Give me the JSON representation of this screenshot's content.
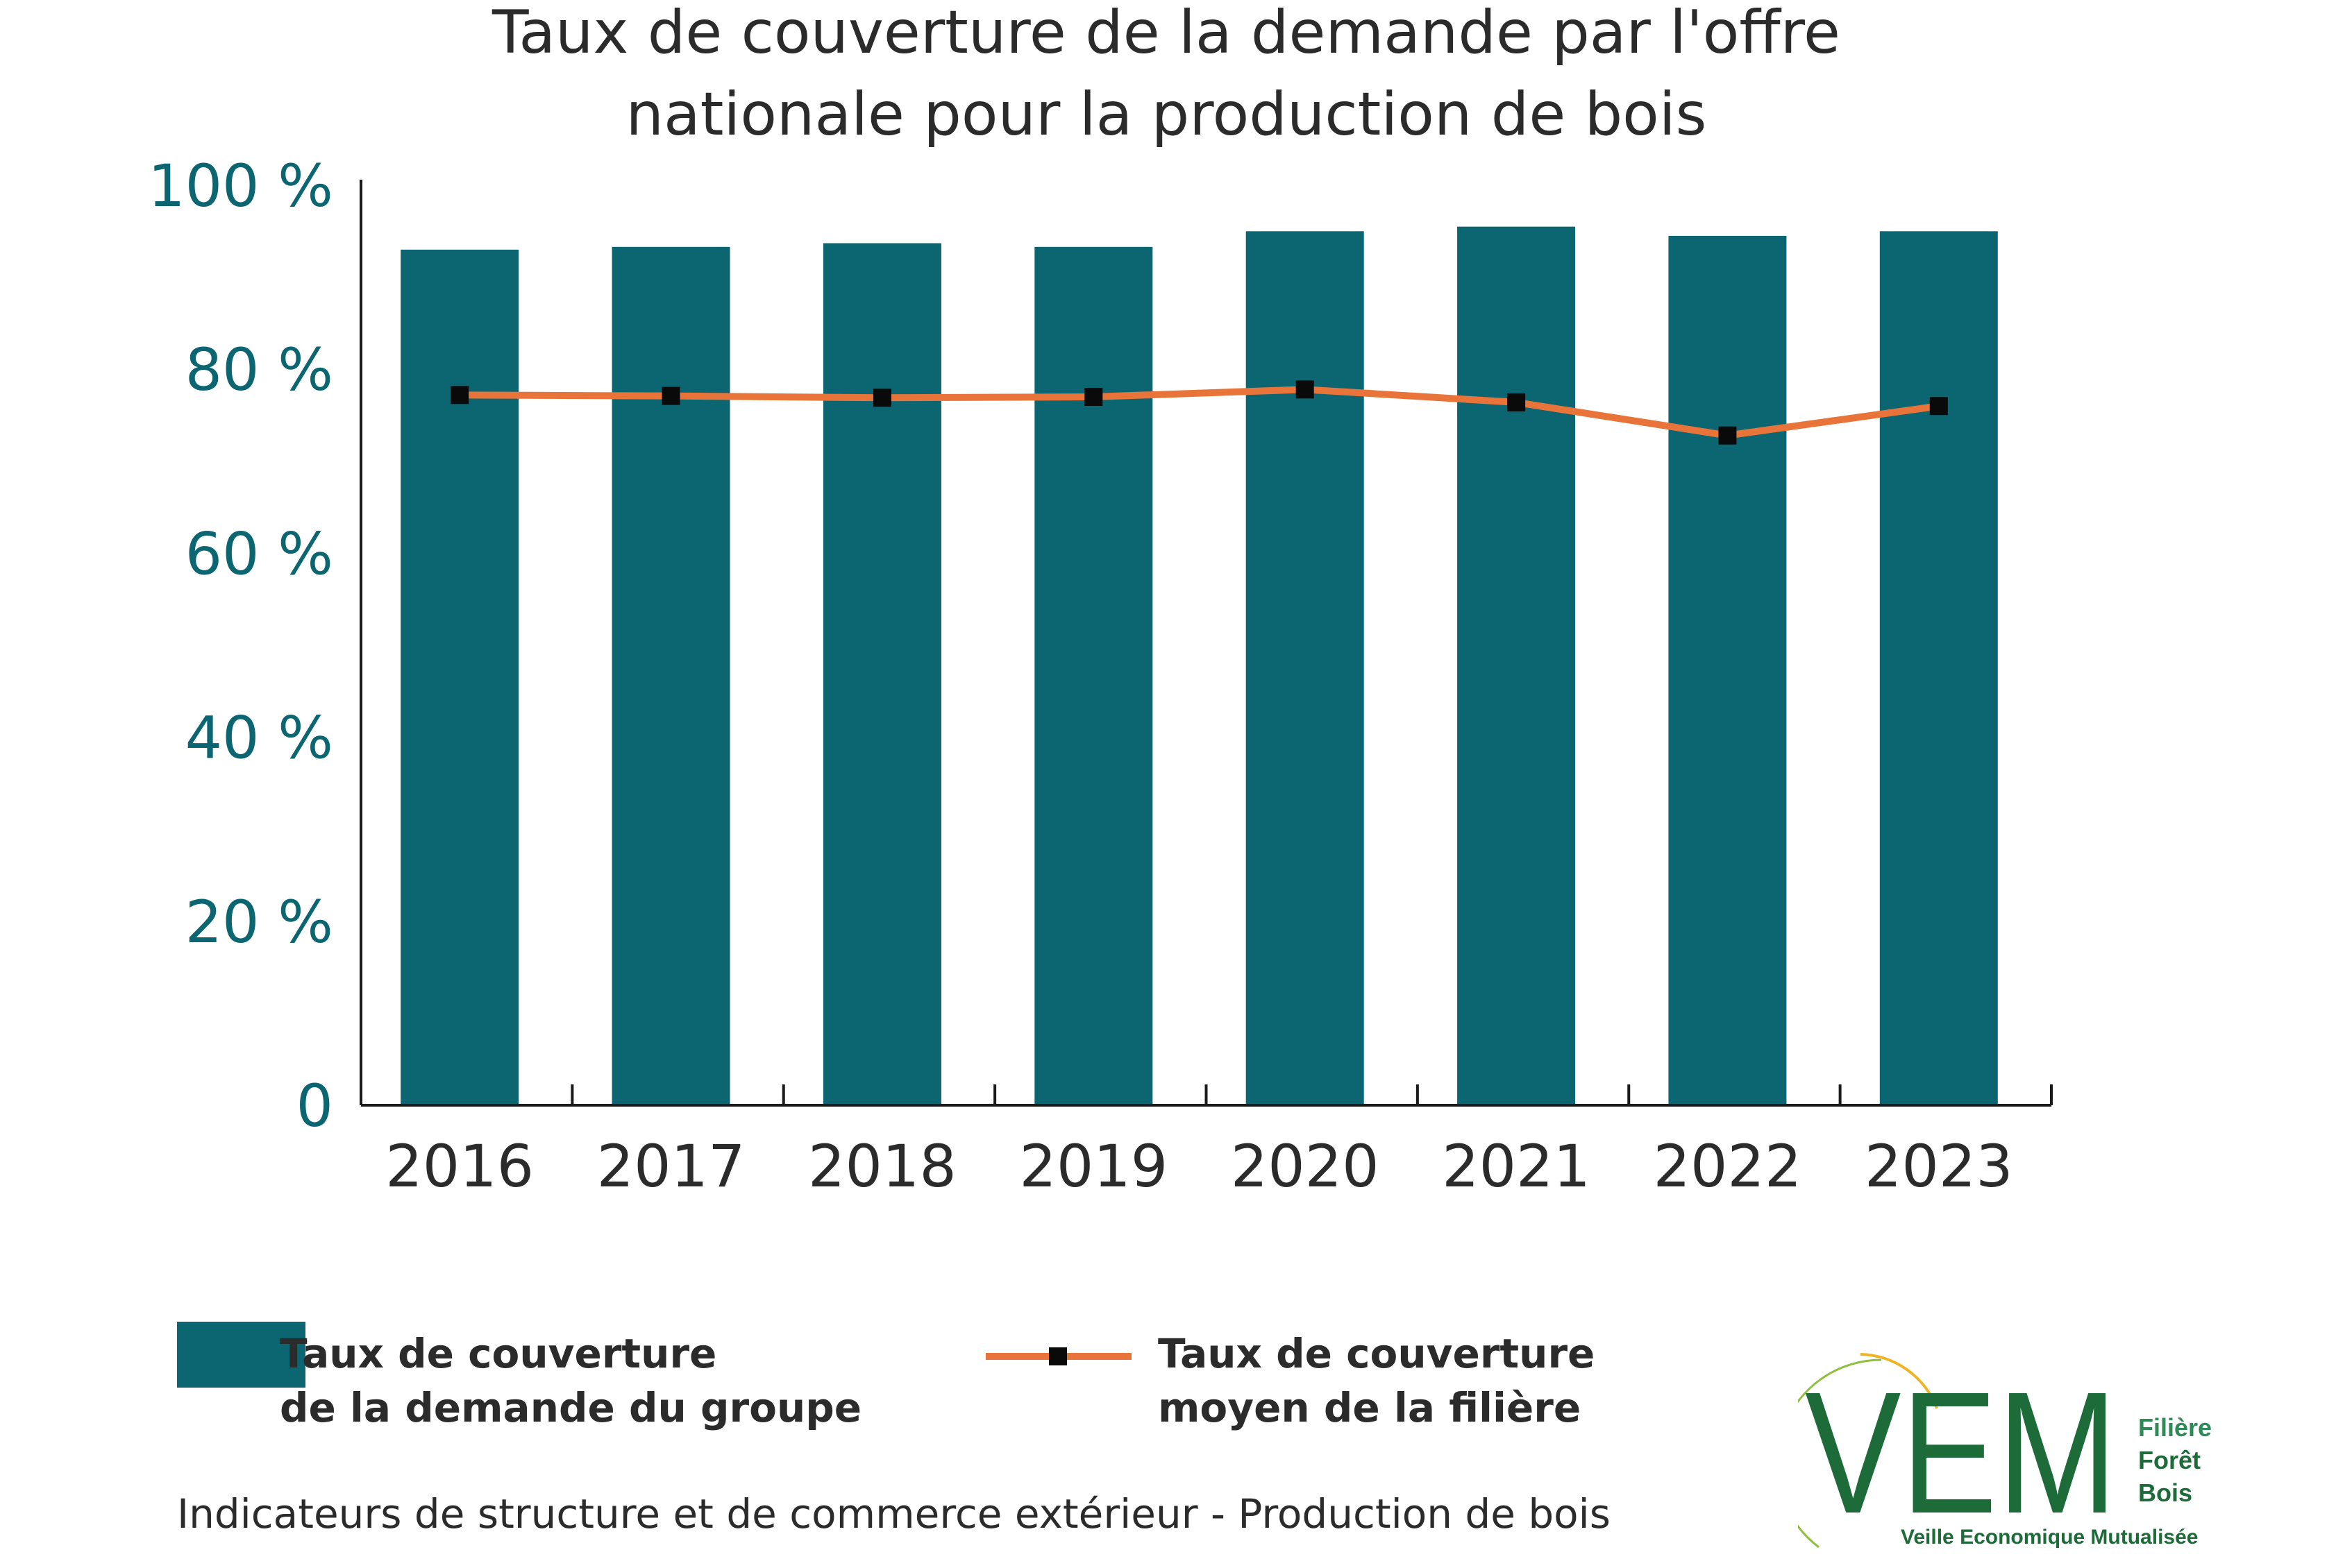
{
  "title": {
    "line1": "Taux de couverture de la demande par l'offre",
    "line2": "nationale pour la production de bois"
  },
  "colors": {
    "bar": "#0b6672",
    "line": "#e8743a",
    "marker": "#0a0a0a",
    "axis_text": "#0b6672",
    "text": "#2b2b2b"
  },
  "chart_data": {
    "type": "bar",
    "categories": [
      "2016",
      "2017",
      "2018",
      "2019",
      "2020",
      "2021",
      "2022",
      "2023"
    ],
    "series": [
      {
        "values": [
          93,
          93.3,
          93.7,
          93.3,
          95,
          95.5,
          94.5,
          95
        ],
        "kind": "bar"
      },
      {
        "values": [
          77.2,
          77.1,
          76.9,
          77.0,
          77.8,
          76.4,
          72.8,
          76.0
        ],
        "kind": "line"
      }
    ],
    "ylim": [
      0,
      100
    ],
    "yticks": [
      0,
      20,
      40,
      60,
      80,
      100
    ],
    "ytick_labels": [
      "0",
      "20 %",
      "40 %",
      "60 %",
      "80 %",
      "100 %"
    ],
    "legend": [
      {
        "line1": "Taux de couverture",
        "line2": "de la demande du groupe"
      },
      {
        "line1": "Taux de couverture",
        "line2": "moyen de la filière"
      }
    ],
    "legend_position": "bottom",
    "grid": false
  },
  "footer": "Indicateurs de structure et de commerce extérieur - Production de bois",
  "logo": {
    "letters": "VEM",
    "line1": "Filière",
    "line2": "Forêt",
    "line3": "Bois",
    "tagline": "Veille Economique Mutualisée"
  }
}
